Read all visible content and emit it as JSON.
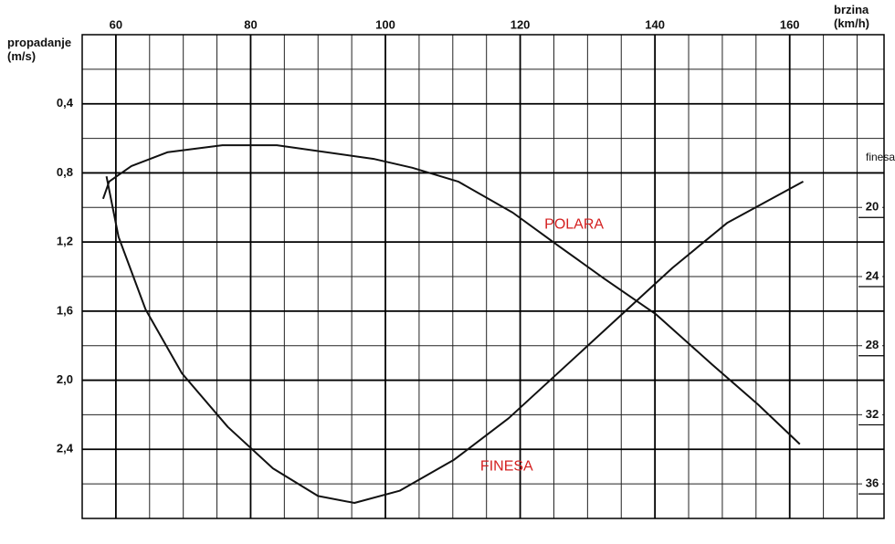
{
  "chart_data": {
    "type": "line",
    "x_label": "brzina\n(km/h)",
    "y_label": "propadanje\n(m/s)",
    "y2_label": "finesa",
    "xlim": [
      55,
      174
    ],
    "xticks": [
      60,
      80,
      100,
      120,
      140,
      160
    ],
    "ylim": [
      0,
      2.8
    ],
    "y_inverted": true,
    "yticks": [
      {
        "value": 0.4,
        "label": "0,4"
      },
      {
        "value": 0.8,
        "label": "0,8"
      },
      {
        "value": 1.2,
        "label": "1,2"
      },
      {
        "value": 1.6,
        "label": "1,6"
      },
      {
        "value": 2.0,
        "label": "2,0"
      },
      {
        "value": 2.4,
        "label": "2,4"
      }
    ],
    "y2lim": [
      10,
      38
    ],
    "y2_inverted": true,
    "y2ticks": [
      20,
      24,
      28,
      32,
      36
    ],
    "grid": true,
    "series": [
      {
        "name": "POLARA",
        "color": "#111111",
        "x": [
          58.1,
          59,
          62.3,
          67.7,
          75.8,
          83.9,
          98.4,
          104,
          110.8,
          118.9,
          125.6,
          132.4,
          140.2,
          148.5,
          155.3,
          161.5
        ],
        "values": [
          0.95,
          0.85,
          0.76,
          0.68,
          0.64,
          0.64,
          0.72,
          0.77,
          0.85,
          1.03,
          1.22,
          1.41,
          1.62,
          1.91,
          2.14,
          2.37
        ]
      },
      {
        "name": "FINESA",
        "color": "#111111",
        "axis": "y2",
        "x": [
          58.6,
          60.4,
          64.4,
          69.8,
          76.6,
          83.3,
          90,
          95.4,
          102.1,
          110.2,
          118.3,
          126.4,
          134.5,
          142.6,
          150.7,
          162
        ],
        "values": [
          18.2,
          21.7,
          25.9,
          29.6,
          32.7,
          35.1,
          36.7,
          37.1,
          36.4,
          34.6,
          32.2,
          29.3,
          26.4,
          23.5,
          20.9,
          18.5
        ]
      }
    ],
    "annotations": [
      {
        "text": "POLARA",
        "x": 128,
        "y": 1.1
      },
      {
        "text": "FINESA",
        "x": 118,
        "y": 2.5
      }
    ]
  }
}
